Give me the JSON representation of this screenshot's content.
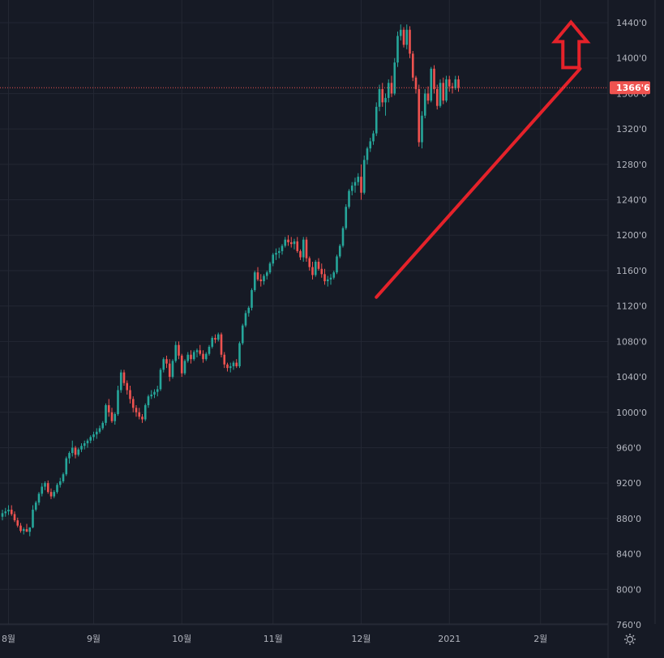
{
  "chart_data": {
    "type": "candlestick",
    "title": "",
    "xlabel": "",
    "ylabel": "",
    "ylim": [
      7600,
      14600
    ],
    "y_ticks": [
      "1440'0",
      "1400'0",
      "1360'0",
      "1320'0",
      "1280'0",
      "1240'0",
      "1200'0",
      "1160'0",
      "1120'0",
      "1080'0",
      "1040'0",
      "1000'0",
      "960'0",
      "920'0",
      "880'0",
      "840'0",
      "800'0",
      "760'0"
    ],
    "y_tick_values": [
      14400,
      14000,
      13600,
      13200,
      12800,
      12400,
      12000,
      11600,
      11200,
      10800,
      10400,
      10000,
      9600,
      9200,
      8800,
      8400,
      8000,
      7600
    ],
    "x_ticks": [
      "8월",
      "9월",
      "10월",
      "11월",
      "12월",
      "2021",
      "2월"
    ],
    "x_tick_index": [
      2,
      30,
      59,
      89,
      118,
      147,
      177
    ],
    "last_price_label": "1366'6",
    "last_price": 13666,
    "grid": true,
    "colors": {
      "background": "#161a25",
      "grid": "#232733",
      "up": "#26a69a",
      "down": "#ef5350",
      "annotation": "#e5222a",
      "price_line": "#ef5350",
      "axis_text": "#b2b5be"
    },
    "trendline": {
      "from": {
        "index": 123,
        "price": 11300
      },
      "to": {
        "index": 190,
        "price": 13880
      }
    },
    "arrow": {
      "index": 187,
      "price": 14150,
      "direction": "up"
    },
    "ohlc": [
      [
        8820,
        8900,
        8780,
        8860
      ],
      [
        8860,
        8920,
        8820,
        8880
      ],
      [
        8880,
        8950,
        8840,
        8900
      ],
      [
        8900,
        8950,
        8830,
        8850
      ],
      [
        8850,
        8880,
        8760,
        8780
      ],
      [
        8780,
        8810,
        8700,
        8720
      ],
      [
        8720,
        8750,
        8640,
        8660
      ],
      [
        8660,
        8700,
        8620,
        8680
      ],
      [
        8680,
        8740,
        8650,
        8650
      ],
      [
        8650,
        8700,
        8600,
        8700
      ],
      [
        8700,
        8950,
        8690,
        8900
      ],
      [
        8900,
        9000,
        8880,
        8980
      ],
      [
        8980,
        9100,
        8950,
        9080
      ],
      [
        9080,
        9200,
        9050,
        9160
      ],
      [
        9160,
        9220,
        9120,
        9200
      ],
      [
        9200,
        9230,
        9080,
        9100
      ],
      [
        9100,
        9140,
        9020,
        9050
      ],
      [
        9050,
        9120,
        9030,
        9100
      ],
      [
        9100,
        9200,
        9080,
        9180
      ],
      [
        9180,
        9260,
        9150,
        9220
      ],
      [
        9220,
        9320,
        9200,
        9300
      ],
      [
        9300,
        9500,
        9280,
        9480
      ],
      [
        9480,
        9560,
        9420,
        9540
      ],
      [
        9540,
        9680,
        9500,
        9600
      ],
      [
        9600,
        9620,
        9480,
        9520
      ],
      [
        9520,
        9600,
        9500,
        9580
      ],
      [
        9580,
        9650,
        9550,
        9620
      ],
      [
        9620,
        9680,
        9580,
        9650
      ],
      [
        9650,
        9700,
        9600,
        9680
      ],
      [
        9680,
        9740,
        9650,
        9720
      ],
      [
        9720,
        9780,
        9680,
        9750
      ],
      [
        9750,
        9820,
        9700,
        9780
      ],
      [
        9780,
        9850,
        9760,
        9820
      ],
      [
        9820,
        9900,
        9800,
        9880
      ],
      [
        9880,
        10100,
        9850,
        10080
      ],
      [
        10080,
        10150,
        9950,
        10000
      ],
      [
        10000,
        10050,
        9880,
        9900
      ],
      [
        9900,
        10000,
        9860,
        9980
      ],
      [
        9980,
        10300,
        9960,
        10250
      ],
      [
        10250,
        10480,
        10220,
        10450
      ],
      [
        10450,
        10480,
        10300,
        10330
      ],
      [
        10330,
        10360,
        10200,
        10250
      ],
      [
        10250,
        10300,
        10100,
        10150
      ],
      [
        10150,
        10180,
        10000,
        10050
      ],
      [
        10050,
        10080,
        9950,
        10000
      ],
      [
        10000,
        10050,
        9920,
        9950
      ],
      [
        9950,
        9980,
        9880,
        9920
      ],
      [
        9920,
        10100,
        9900,
        10080
      ],
      [
        10080,
        10200,
        10050,
        10180
      ],
      [
        10180,
        10250,
        10150,
        10200
      ],
      [
        10200,
        10260,
        10160,
        10230
      ],
      [
        10230,
        10300,
        10180,
        10260
      ],
      [
        10260,
        10500,
        10240,
        10480
      ],
      [
        10480,
        10620,
        10450,
        10600
      ],
      [
        10600,
        10640,
        10500,
        10550
      ],
      [
        10550,
        10600,
        10350,
        10400
      ],
      [
        10400,
        10600,
        10380,
        10580
      ],
      [
        10580,
        10800,
        10560,
        10760
      ],
      [
        10760,
        10800,
        10600,
        10640
      ],
      [
        10640,
        10660,
        10400,
        10440
      ],
      [
        10440,
        10600,
        10420,
        10580
      ],
      [
        10580,
        10680,
        10560,
        10650
      ],
      [
        10650,
        10700,
        10550,
        10600
      ],
      [
        10600,
        10700,
        10580,
        10680
      ],
      [
        10680,
        10720,
        10620,
        10700
      ],
      [
        10700,
        10760,
        10640,
        10660
      ],
      [
        10660,
        10700,
        10560,
        10600
      ],
      [
        10600,
        10680,
        10580,
        10660
      ],
      [
        10660,
        10760,
        10640,
        10740
      ],
      [
        10740,
        10860,
        10720,
        10840
      ],
      [
        10840,
        10880,
        10780,
        10820
      ],
      [
        10820,
        10900,
        10800,
        10880
      ],
      [
        10880,
        10900,
        10620,
        10650
      ],
      [
        10650,
        10680,
        10500,
        10540
      ],
      [
        10540,
        10560,
        10460,
        10500
      ],
      [
        10500,
        10560,
        10450,
        10520
      ],
      [
        10520,
        10580,
        10480,
        10560
      ],
      [
        10560,
        10600,
        10500,
        10520
      ],
      [
        10520,
        10800,
        10500,
        10780
      ],
      [
        10780,
        11000,
        10760,
        10980
      ],
      [
        10980,
        11150,
        10960,
        11120
      ],
      [
        11120,
        11200,
        11080,
        11180
      ],
      [
        11180,
        11400,
        11150,
        11380
      ],
      [
        11380,
        11600,
        11360,
        11580
      ],
      [
        11580,
        11640,
        11480,
        11500
      ],
      [
        11500,
        11560,
        11420,
        11480
      ],
      [
        11480,
        11560,
        11440,
        11540
      ],
      [
        11540,
        11600,
        11500,
        11580
      ],
      [
        11580,
        11700,
        11560,
        11680
      ],
      [
        11680,
        11800,
        11650,
        11780
      ],
      [
        11780,
        11850,
        11720,
        11800
      ],
      [
        11800,
        11860,
        11740,
        11820
      ],
      [
        11820,
        11900,
        11780,
        11880
      ],
      [
        11880,
        11980,
        11860,
        11950
      ],
      [
        11950,
        12000,
        11880,
        11920
      ],
      [
        11920,
        11980,
        11860,
        11900
      ],
      [
        11900,
        11960,
        11840,
        11930
      ],
      [
        11930,
        11980,
        11800,
        11820
      ],
      [
        11820,
        11840,
        11720,
        11750
      ],
      [
        11750,
        11980,
        11700,
        11950
      ],
      [
        11950,
        11980,
        11700,
        11740
      ],
      [
        11740,
        11760,
        11600,
        11640
      ],
      [
        11640,
        11700,
        11500,
        11550
      ],
      [
        11550,
        11720,
        11530,
        11700
      ],
      [
        11700,
        11740,
        11600,
        11620
      ],
      [
        11620,
        11680,
        11520,
        11560
      ],
      [
        11560,
        11620,
        11440,
        11480
      ],
      [
        11480,
        11540,
        11420,
        11500
      ],
      [
        11500,
        11560,
        11440,
        11520
      ],
      [
        11520,
        11600,
        11500,
        11580
      ],
      [
        11580,
        11780,
        11560,
        11760
      ],
      [
        11760,
        11900,
        11740,
        11880
      ],
      [
        11880,
        12100,
        11860,
        12080
      ],
      [
        12080,
        12350,
        12060,
        12320
      ],
      [
        12320,
        12520,
        12300,
        12500
      ],
      [
        12500,
        12600,
        12450,
        12560
      ],
      [
        12560,
        12650,
        12480,
        12600
      ],
      [
        12600,
        12700,
        12560,
        12660
      ],
      [
        12660,
        12800,
        12400,
        12480
      ],
      [
        12480,
        12900,
        12460,
        12850
      ],
      [
        12850,
        13000,
        12800,
        12980
      ],
      [
        12980,
        13100,
        12940,
        13060
      ],
      [
        13060,
        13180,
        13020,
        13150
      ],
      [
        13150,
        13500,
        13120,
        13450
      ],
      [
        13450,
        13700,
        13400,
        13650
      ],
      [
        13650,
        13720,
        13450,
        13500
      ],
      [
        13500,
        13600,
        13350,
        13550
      ],
      [
        13550,
        13760,
        13500,
        13720
      ],
      [
        13720,
        13800,
        13560,
        13600
      ],
      [
        13600,
        14000,
        13580,
        13950
      ],
      [
        13950,
        14300,
        13900,
        14250
      ],
      [
        14250,
        14380,
        14200,
        14320
      ],
      [
        14320,
        14350,
        14120,
        14150
      ],
      [
        14150,
        14380,
        14100,
        14320
      ],
      [
        14320,
        14360,
        14000,
        14050
      ],
      [
        14050,
        14080,
        13740,
        13780
      ],
      [
        13780,
        13800,
        13600,
        13650
      ],
      [
        13650,
        13700,
        13000,
        13050
      ],
      [
        13050,
        13400,
        12980,
        13350
      ],
      [
        13350,
        13650,
        13320,
        13600
      ],
      [
        13600,
        13680,
        13480,
        13520
      ],
      [
        13520,
        13900,
        13500,
        13880
      ],
      [
        13880,
        13920,
        13600,
        13650
      ],
      [
        13650,
        13700,
        13420,
        13460
      ],
      [
        13460,
        13760,
        13440,
        13720
      ],
      [
        13720,
        13780,
        13480,
        13520
      ],
      [
        13520,
        13800,
        13500,
        13760
      ],
      [
        13760,
        13800,
        13620,
        13680
      ],
      [
        13680,
        13720,
        13600,
        13660
      ],
      [
        13660,
        13800,
        13640,
        13760
      ],
      [
        13760,
        13800,
        13620,
        13666
      ]
    ]
  }
}
